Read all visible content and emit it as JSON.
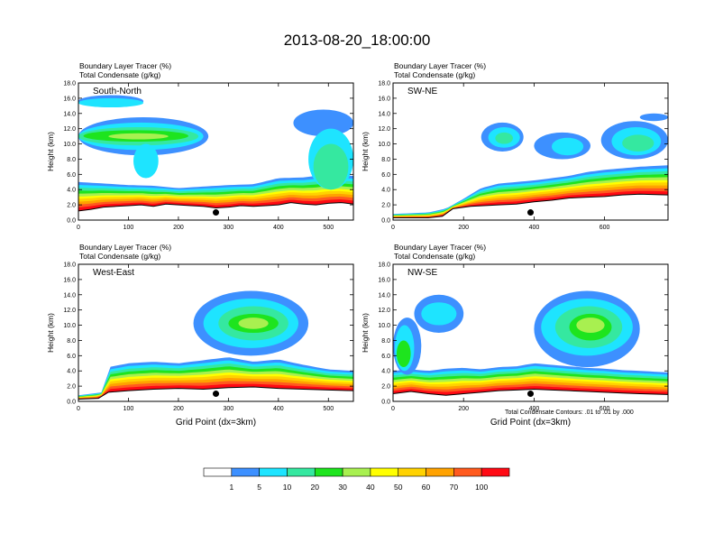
{
  "figure": {
    "title": "2013-08-20_18:00:00",
    "footnote": "Total Condensate Contours: .01 to .01 by .000"
  },
  "colors": {
    "scale": [
      "#ffffff",
      "#3d90ff",
      "#1ee4ff",
      "#35e8a0",
      "#1ee41e",
      "#a8f050",
      "#ffff00",
      "#ffd200",
      "#ffa200",
      "#ff5a1e",
      "#ff0a14"
    ],
    "axis": "#000000"
  },
  "colorbar": {
    "labels": [
      "1",
      "5",
      "10",
      "20",
      "30",
      "40",
      "50",
      "60",
      "70",
      "100"
    ]
  },
  "chart_data": [
    {
      "type": "heatmap",
      "name": "South-North",
      "title": "South-North",
      "field_labels": [
        "Boundary Layer Tracer   (%)",
        "Total Condensate   (g/kg)"
      ],
      "ylabel": "Height (km)",
      "xlabel": "",
      "xlim": [
        0,
        550
      ],
      "ylim": [
        0,
        18
      ],
      "xticks": [
        "0",
        "100",
        "200",
        "300",
        "400",
        "500"
      ],
      "yticks": [
        "0.0",
        "2.0",
        "4.0",
        "6.0",
        "8.0",
        "10.0",
        "12.0",
        "14.0",
        "16.0",
        "18.0"
      ],
      "marker": {
        "x": 275,
        "y": 1.0
      },
      "terrain": [
        [
          0,
          1.2
        ],
        [
          25,
          1.4
        ],
        [
          50,
          1.7
        ],
        [
          75,
          1.8
        ],
        [
          100,
          1.9
        ],
        [
          125,
          2.0
        ],
        [
          150,
          1.8
        ],
        [
          175,
          2.1
        ],
        [
          200,
          2.0
        ],
        [
          225,
          1.9
        ],
        [
          250,
          1.8
        ],
        [
          275,
          1.6
        ],
        [
          300,
          1.7
        ],
        [
          325,
          1.9
        ],
        [
          350,
          1.8
        ],
        [
          375,
          1.9
        ],
        [
          400,
          2.0
        ],
        [
          425,
          2.3
        ],
        [
          450,
          2.1
        ],
        [
          475,
          2.0
        ],
        [
          500,
          2.2
        ],
        [
          525,
          2.3
        ],
        [
          550,
          2.1
        ]
      ],
      "pbl_top": [
        [
          0,
          5.0
        ],
        [
          50,
          4.8
        ],
        [
          100,
          4.6
        ],
        [
          150,
          4.5
        ],
        [
          200,
          4.2
        ],
        [
          250,
          4.4
        ],
        [
          300,
          4.6
        ],
        [
          350,
          4.7
        ],
        [
          400,
          5.5
        ],
        [
          450,
          5.6
        ],
        [
          500,
          6.0
        ],
        [
          550,
          5.8
        ]
      ],
      "clouds": [
        {
          "x": [
            0,
            130
          ],
          "y": [
            14.8,
            16.4
          ],
          "v": 1
        },
        {
          "x": [
            0,
            130
          ],
          "y": [
            14.8,
            16.0
          ],
          "v": 2
        },
        {
          "x": [
            0,
            260
          ],
          "y": [
            8.5,
            13.5
          ],
          "v": 1
        },
        {
          "x": [
            0,
            250
          ],
          "y": [
            9.2,
            12.8
          ],
          "v": 2
        },
        {
          "x": [
            0,
            240
          ],
          "y": [
            9.8,
            12.2
          ],
          "v": 3
        },
        {
          "x": [
            10,
            220
          ],
          "y": [
            10.3,
            11.8
          ],
          "v": 4
        },
        {
          "x": [
            60,
            180
          ],
          "y": [
            10.6,
            11.4
          ],
          "v": 5
        },
        {
          "x": [
            110,
            160
          ],
          "y": [
            5.5,
            10.0
          ],
          "v": 2
        },
        {
          "x": [
            430,
            550
          ],
          "y": [
            11.0,
            14.5
          ],
          "v": 1
        },
        {
          "x": [
            460,
            550
          ],
          "y": [
            4.0,
            12.0
          ],
          "v": 2
        },
        {
          "x": [
            470,
            540
          ],
          "y": [
            4.0,
            10.0
          ],
          "v": 3
        }
      ]
    },
    {
      "type": "heatmap",
      "name": "SW-NE",
      "title": "SW-NE",
      "field_labels": [
        "Boundary Layer Tracer   (%)",
        "Total Condensate   (g/kg)"
      ],
      "ylabel": "Height (km)",
      "xlabel": "",
      "xlim": [
        0,
        780
      ],
      "ylim": [
        0,
        18
      ],
      "xticks": [
        "0",
        "200",
        "400",
        "600"
      ],
      "yticks": [
        "0.0",
        "2.0",
        "4.0",
        "6.0",
        "8.0",
        "10.0",
        "12.0",
        "14.0",
        "16.0",
        "18.0"
      ],
      "marker": {
        "x": 390,
        "y": 1.0
      },
      "terrain": [
        [
          0,
          0.3
        ],
        [
          100,
          0.3
        ],
        [
          140,
          0.5
        ],
        [
          170,
          1.5
        ],
        [
          220,
          1.8
        ],
        [
          300,
          2.0
        ],
        [
          350,
          2.1
        ],
        [
          400,
          2.4
        ],
        [
          450,
          2.6
        ],
        [
          500,
          2.9
        ],
        [
          550,
          3.0
        ],
        [
          600,
          3.1
        ],
        [
          650,
          3.3
        ],
        [
          700,
          3.4
        ],
        [
          780,
          3.3
        ]
      ],
      "pbl_top": [
        [
          0,
          0.8
        ],
        [
          100,
          1.0
        ],
        [
          150,
          1.5
        ],
        [
          200,
          2.8
        ],
        [
          250,
          4.2
        ],
        [
          300,
          4.8
        ],
        [
          350,
          5.0
        ],
        [
          400,
          5.2
        ],
        [
          450,
          5.5
        ],
        [
          500,
          5.8
        ],
        [
          550,
          6.3
        ],
        [
          600,
          6.6
        ],
        [
          650,
          6.8
        ],
        [
          700,
          7.0
        ],
        [
          780,
          7.2
        ]
      ],
      "clouds": [
        {
          "x": [
            250,
            370
          ],
          "y": [
            9.0,
            12.8
          ],
          "v": 1
        },
        {
          "x": [
            270,
            360
          ],
          "y": [
            9.5,
            12.2
          ],
          "v": 2
        },
        {
          "x": [
            290,
            340
          ],
          "y": [
            10.0,
            11.5
          ],
          "v": 3
        },
        {
          "x": [
            400,
            560
          ],
          "y": [
            8.0,
            11.5
          ],
          "v": 1
        },
        {
          "x": [
            450,
            540
          ],
          "y": [
            8.5,
            10.8
          ],
          "v": 2
        },
        {
          "x": [
            590,
            780
          ],
          "y": [
            8.0,
            13.0
          ],
          "v": 1
        },
        {
          "x": [
            620,
            760
          ],
          "y": [
            8.5,
            12.2
          ],
          "v": 2
        },
        {
          "x": [
            650,
            740
          ],
          "y": [
            9.0,
            11.2
          ],
          "v": 3
        },
        {
          "x": [
            700,
            780
          ],
          "y": [
            13.0,
            14.0
          ],
          "v": 1
        }
      ]
    },
    {
      "type": "heatmap",
      "name": "West-East",
      "title": "West-East",
      "field_labels": [
        "Boundary Layer Tracer   (%)",
        "Total Condensate   (g/kg)"
      ],
      "ylabel": "Height (km)",
      "xlabel": "Grid Point (dx=3km)",
      "xlim": [
        0,
        550
      ],
      "ylim": [
        0,
        18
      ],
      "xticks": [
        "0",
        "100",
        "200",
        "300",
        "400",
        "500"
      ],
      "yticks": [
        "0.0",
        "2.0",
        "4.0",
        "6.0",
        "8.0",
        "10.0",
        "12.0",
        "14.0",
        "16.0",
        "18.0"
      ],
      "marker": {
        "x": 275,
        "y": 1.0
      },
      "terrain": [
        [
          0,
          0.3
        ],
        [
          40,
          0.4
        ],
        [
          60,
          1.2
        ],
        [
          100,
          1.4
        ],
        [
          150,
          1.6
        ],
        [
          200,
          1.7
        ],
        [
          250,
          1.6
        ],
        [
          300,
          1.8
        ],
        [
          350,
          1.9
        ],
        [
          400,
          1.7
        ],
        [
          450,
          1.6
        ],
        [
          500,
          1.5
        ],
        [
          550,
          1.4
        ]
      ],
      "pbl_top": [
        [
          0,
          0.8
        ],
        [
          50,
          1.2
        ],
        [
          60,
          4.5
        ],
        [
          100,
          5.0
        ],
        [
          150,
          5.2
        ],
        [
          200,
          5.0
        ],
        [
          250,
          5.4
        ],
        [
          300,
          5.8
        ],
        [
          350,
          5.2
        ],
        [
          400,
          5.5
        ],
        [
          450,
          4.8
        ],
        [
          500,
          4.2
        ],
        [
          550,
          4.0
        ]
      ],
      "clouds": [
        {
          "x": [
            230,
            460
          ],
          "y": [
            6.0,
            14.5
          ],
          "v": 1
        },
        {
          "x": [
            250,
            440
          ],
          "y": [
            7.0,
            13.5
          ],
          "v": 2
        },
        {
          "x": [
            280,
            420
          ],
          "y": [
            8.0,
            12.5
          ],
          "v": 3
        },
        {
          "x": [
            300,
            400
          ],
          "y": [
            9.0,
            11.5
          ],
          "v": 4
        },
        {
          "x": [
            320,
            380
          ],
          "y": [
            9.5,
            11.0
          ],
          "v": 5
        }
      ]
    },
    {
      "type": "heatmap",
      "name": "NW-SE",
      "title": "NW-SE",
      "field_labels": [
        "Boundary Layer Tracer   (%)",
        "Total Condensate   (g/kg)"
      ],
      "ylabel": "Height (km)",
      "xlabel": "Grid Point (dx=3km)",
      "xlim": [
        0,
        780
      ],
      "ylim": [
        0,
        18
      ],
      "xticks": [
        "0",
        "200",
        "400",
        "600"
      ],
      "yticks": [
        "0.0",
        "2.0",
        "4.0",
        "6.0",
        "8.0",
        "10.0",
        "12.0",
        "14.0",
        "16.0",
        "18.0"
      ],
      "marker": {
        "x": 390,
        "y": 1.0
      },
      "terrain": [
        [
          0,
          1.0
        ],
        [
          50,
          1.3
        ],
        [
          100,
          1.0
        ],
        [
          150,
          0.8
        ],
        [
          200,
          1.0
        ],
        [
          250,
          1.2
        ],
        [
          300,
          1.4
        ],
        [
          350,
          1.5
        ],
        [
          400,
          1.6
        ],
        [
          450,
          1.5
        ],
        [
          500,
          1.4
        ],
        [
          550,
          1.3
        ],
        [
          600,
          1.2
        ],
        [
          650,
          1.1
        ],
        [
          700,
          1.0
        ],
        [
          780,
          0.9
        ]
      ],
      "pbl_top": [
        [
          0,
          4.0
        ],
        [
          50,
          4.2
        ],
        [
          100,
          4.0
        ],
        [
          150,
          4.3
        ],
        [
          200,
          4.4
        ],
        [
          250,
          4.2
        ],
        [
          300,
          4.5
        ],
        [
          350,
          4.6
        ],
        [
          400,
          5.0
        ],
        [
          450,
          4.8
        ],
        [
          500,
          4.6
        ],
        [
          550,
          4.4
        ],
        [
          600,
          4.3
        ],
        [
          650,
          4.1
        ],
        [
          700,
          4.0
        ],
        [
          780,
          3.8
        ]
      ],
      "clouds": [
        {
          "x": [
            0,
            80
          ],
          "y": [
            3.5,
            11.0
          ],
          "v": 1
        },
        {
          "x": [
            5,
            60
          ],
          "y": [
            4.0,
            10.0
          ],
          "v": 2
        },
        {
          "x": [
            10,
            50
          ],
          "y": [
            4.5,
            8.0
          ],
          "v": 4
        },
        {
          "x": [
            60,
            200
          ],
          "y": [
            9.0,
            14.0
          ],
          "v": 1
        },
        {
          "x": [
            80,
            180
          ],
          "y": [
            10.0,
            13.0
          ],
          "v": 2
        },
        {
          "x": [
            400,
            700
          ],
          "y": [
            4.5,
            14.5
          ],
          "v": 1
        },
        {
          "x": [
            420,
            680
          ],
          "y": [
            6.0,
            13.5
          ],
          "v": 2
        },
        {
          "x": [
            460,
            650
          ],
          "y": [
            7.0,
            12.5
          ],
          "v": 3
        },
        {
          "x": [
            500,
            620
          ],
          "y": [
            8.0,
            11.5
          ],
          "v": 4
        },
        {
          "x": [
            520,
            600
          ],
          "y": [
            9.0,
            11.0
          ],
          "v": 5
        }
      ]
    }
  ]
}
